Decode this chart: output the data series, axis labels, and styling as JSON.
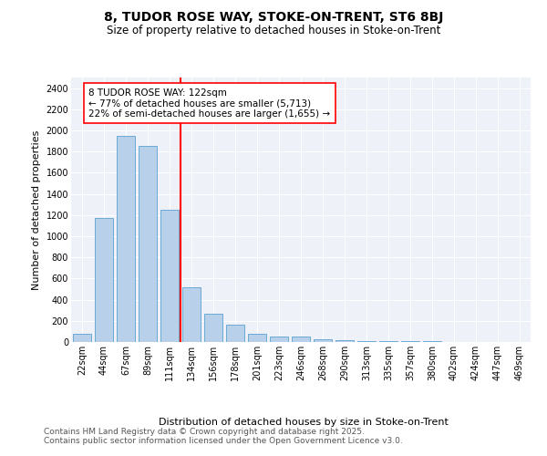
{
  "title1": "8, TUDOR ROSE WAY, STOKE-ON-TRENT, ST6 8BJ",
  "title2": "Size of property relative to detached houses in Stoke-on-Trent",
  "xlabel": "Distribution of detached houses by size in Stoke-on-Trent",
  "ylabel": "Number of detached properties",
  "categories": [
    "22sqm",
    "44sqm",
    "67sqm",
    "89sqm",
    "111sqm",
    "134sqm",
    "156sqm",
    "178sqm",
    "201sqm",
    "223sqm",
    "246sqm",
    "268sqm",
    "290sqm",
    "313sqm",
    "335sqm",
    "357sqm",
    "380sqm",
    "402sqm",
    "424sqm",
    "447sqm",
    "469sqm"
  ],
  "values": [
    75,
    1175,
    1950,
    1850,
    1250,
    520,
    270,
    160,
    75,
    55,
    55,
    30,
    15,
    10,
    5,
    5,
    5,
    3,
    3,
    2,
    2
  ],
  "bar_color": "#b8d0ea",
  "bar_edge_color": "#6aaad4",
  "vline_x": 4.5,
  "vline_color": "red",
  "annotation_text": "8 TUDOR ROSE WAY: 122sqm\n← 77% of detached houses are smaller (5,713)\n22% of semi-detached houses are larger (1,655) →",
  "annotation_box_color": "white",
  "annotation_box_edge": "red",
  "ylim": [
    0,
    2500
  ],
  "yticks": [
    0,
    200,
    400,
    600,
    800,
    1000,
    1200,
    1400,
    1600,
    1800,
    2000,
    2200,
    2400
  ],
  "background_color": "#eef2f8",
  "footer1": "Contains HM Land Registry data © Crown copyright and database right 2025.",
  "footer2": "Contains public sector information licensed under the Open Government Licence v3.0.",
  "title_fontsize": 10,
  "subtitle_fontsize": 8.5,
  "axis_label_fontsize": 8,
  "tick_fontsize": 7,
  "annotation_fontsize": 7.5,
  "footer_fontsize": 6.5
}
